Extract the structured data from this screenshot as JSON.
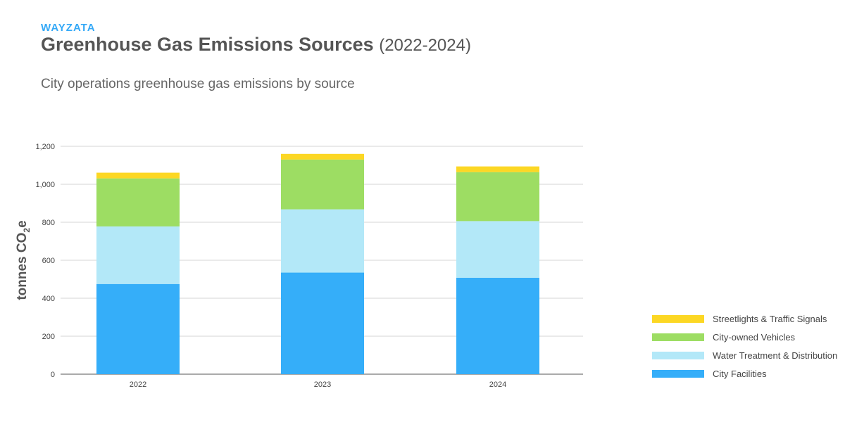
{
  "header": {
    "brand": "WAYZATA",
    "title": "Greenhouse Gas Emissions Sources",
    "title_years": "(2022-2024)",
    "subtitle": "City operations greenhouse gas emissions by source"
  },
  "chart_data": {
    "type": "bar",
    "stacked": true,
    "categories": [
      "2022",
      "2023",
      "2024"
    ],
    "series": [
      {
        "name": "City Facilities",
        "color": "#35aef9",
        "values": [
          475,
          535,
          508
        ]
      },
      {
        "name": "Water Treatment & Distribution",
        "color": "#b3e8f8",
        "values": [
          303,
          333,
          298
        ]
      },
      {
        "name": "City-owned Vehicles",
        "color": "#9ddd63",
        "values": [
          253,
          262,
          258
        ]
      },
      {
        "name": "Streetlights & Traffic Signals",
        "color": "#fcd724",
        "values": [
          30,
          30,
          30
        ]
      }
    ],
    "ylabel_main": "tonnes CO",
    "ylabel_sub": "2",
    "ylabel_tail": "e",
    "ylim": [
      0,
      1200
    ],
    "yticks": [
      0,
      200,
      400,
      600,
      800,
      1000,
      1200
    ],
    "ytick_labels": [
      "0",
      "200",
      "400",
      "600",
      "800",
      "1,000",
      "1,200"
    ],
    "grid": true,
    "legend_position": "right, bottom",
    "legend_order": [
      "Streetlights & Traffic Signals",
      "City-owned Vehicles",
      "Water Treatment & Distribution",
      "City Facilities"
    ]
  }
}
